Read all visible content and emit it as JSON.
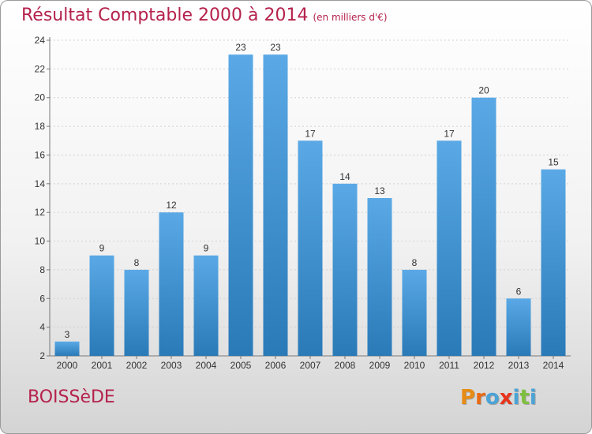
{
  "header": {
    "title": "Résultat Comptable 2000 à 2014",
    "subtitle": "(en milliers d'€)"
  },
  "footer": {
    "commune": "BOISSèDE",
    "logo_letters": [
      "P",
      "r",
      "o",
      "x",
      "i",
      "t",
      "i"
    ]
  },
  "colors": {
    "title": "#b5224c",
    "bar_top": "#5aa9e6",
    "bar_bottom": "#2a7ab8",
    "logo": [
      "#e88b14",
      "#e86a14",
      "#4ba3d6",
      "#e8341c",
      "#4ba3d6",
      "#7fbf3f",
      "#4ba3d6"
    ]
  },
  "chart_data": {
    "type": "bar",
    "title": "Résultat Comptable 2000 à 2014",
    "subtitle": "(en milliers d'€)",
    "categories": [
      "2000",
      "2001",
      "2002",
      "2003",
      "2004",
      "2005",
      "2006",
      "2007",
      "2008",
      "2009",
      "2010",
      "2011",
      "2012",
      "2013",
      "2014"
    ],
    "values": [
      3,
      9,
      8,
      12,
      9,
      23,
      23,
      17,
      14,
      13,
      8,
      17,
      20,
      6,
      15
    ],
    "ylim": [
      2,
      24
    ],
    "yticks": [
      2,
      4,
      6,
      8,
      10,
      12,
      14,
      16,
      18,
      20,
      22,
      24
    ],
    "grid": true,
    "data_labels": true
  }
}
